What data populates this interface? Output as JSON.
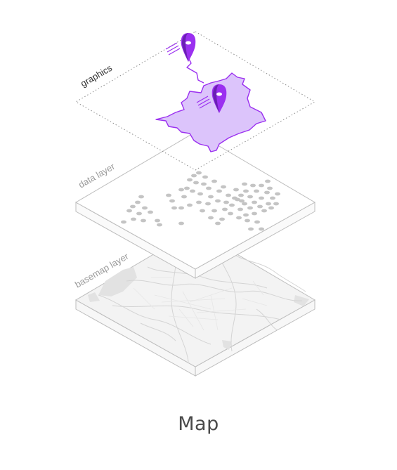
{
  "caption": "Map",
  "layers": {
    "graphics": {
      "label": "graphics",
      "label_color": "#333333"
    },
    "data": {
      "label": "data layer",
      "label_color": "#9a9a9a"
    },
    "basemap": {
      "label": "basemap layer",
      "label_color": "#9a9a9a"
    }
  },
  "colors": {
    "accent": "#9b30f0",
    "accent_fill": "#dcc4fb",
    "accent_dark": "#6a1fb3",
    "dot_fill": "#c4c4c4",
    "basemap_fill": "#f3f3f3",
    "basemap_water": "#dedede",
    "slab_edge": "#bdbdbd"
  },
  "icons": [
    "map-pin-icon",
    "map-pin-icon"
  ]
}
